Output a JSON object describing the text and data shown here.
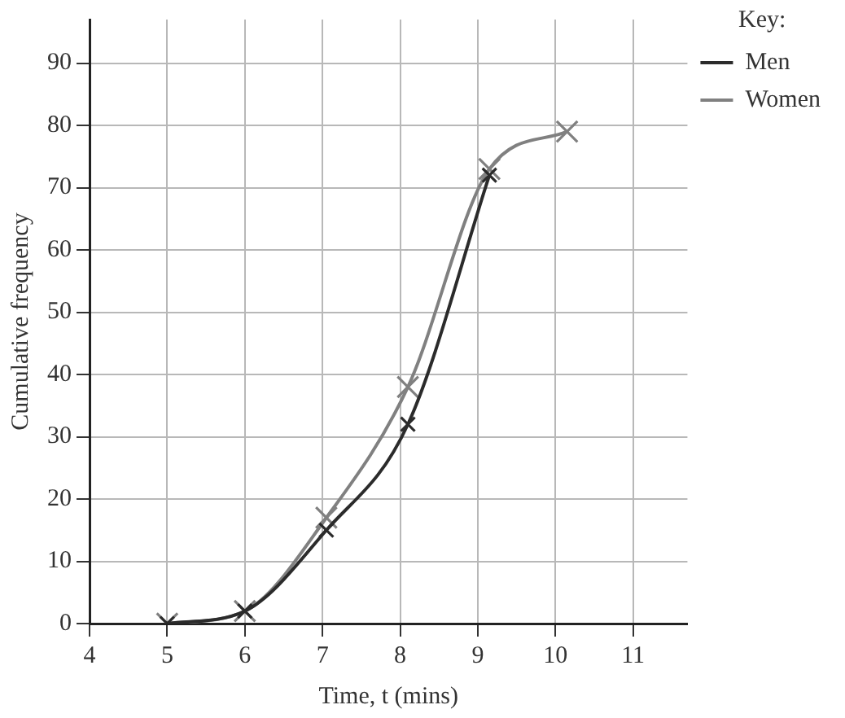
{
  "chart_data": {
    "type": "line",
    "xlabel": "Time, t (mins)",
    "ylabel": "Cumulative frequency",
    "legend_title": "Key:",
    "series": [
      {
        "name": "Men",
        "color": "#2b2b2b",
        "x": [
          5,
          6,
          7.05,
          8.1,
          9.15
        ],
        "values": [
          0,
          2,
          15,
          32,
          72
        ]
      },
      {
        "name": "Women",
        "color": "#808080",
        "x": [
          5,
          6,
          7.05,
          8.1,
          9.15,
          10.15
        ],
        "values": [
          0,
          2,
          17,
          38,
          73,
          79
        ]
      }
    ],
    "xlim": [
      4,
      11.7
    ],
    "xticks": [
      4,
      5,
      6,
      7,
      8,
      9,
      10,
      11
    ],
    "ylim": [
      0,
      97
    ],
    "yticks": [
      0,
      10,
      20,
      30,
      40,
      50,
      60,
      70,
      80,
      90
    ],
    "grid": true,
    "legend": "right",
    "marker": "cross",
    "line_style": "solid"
  }
}
